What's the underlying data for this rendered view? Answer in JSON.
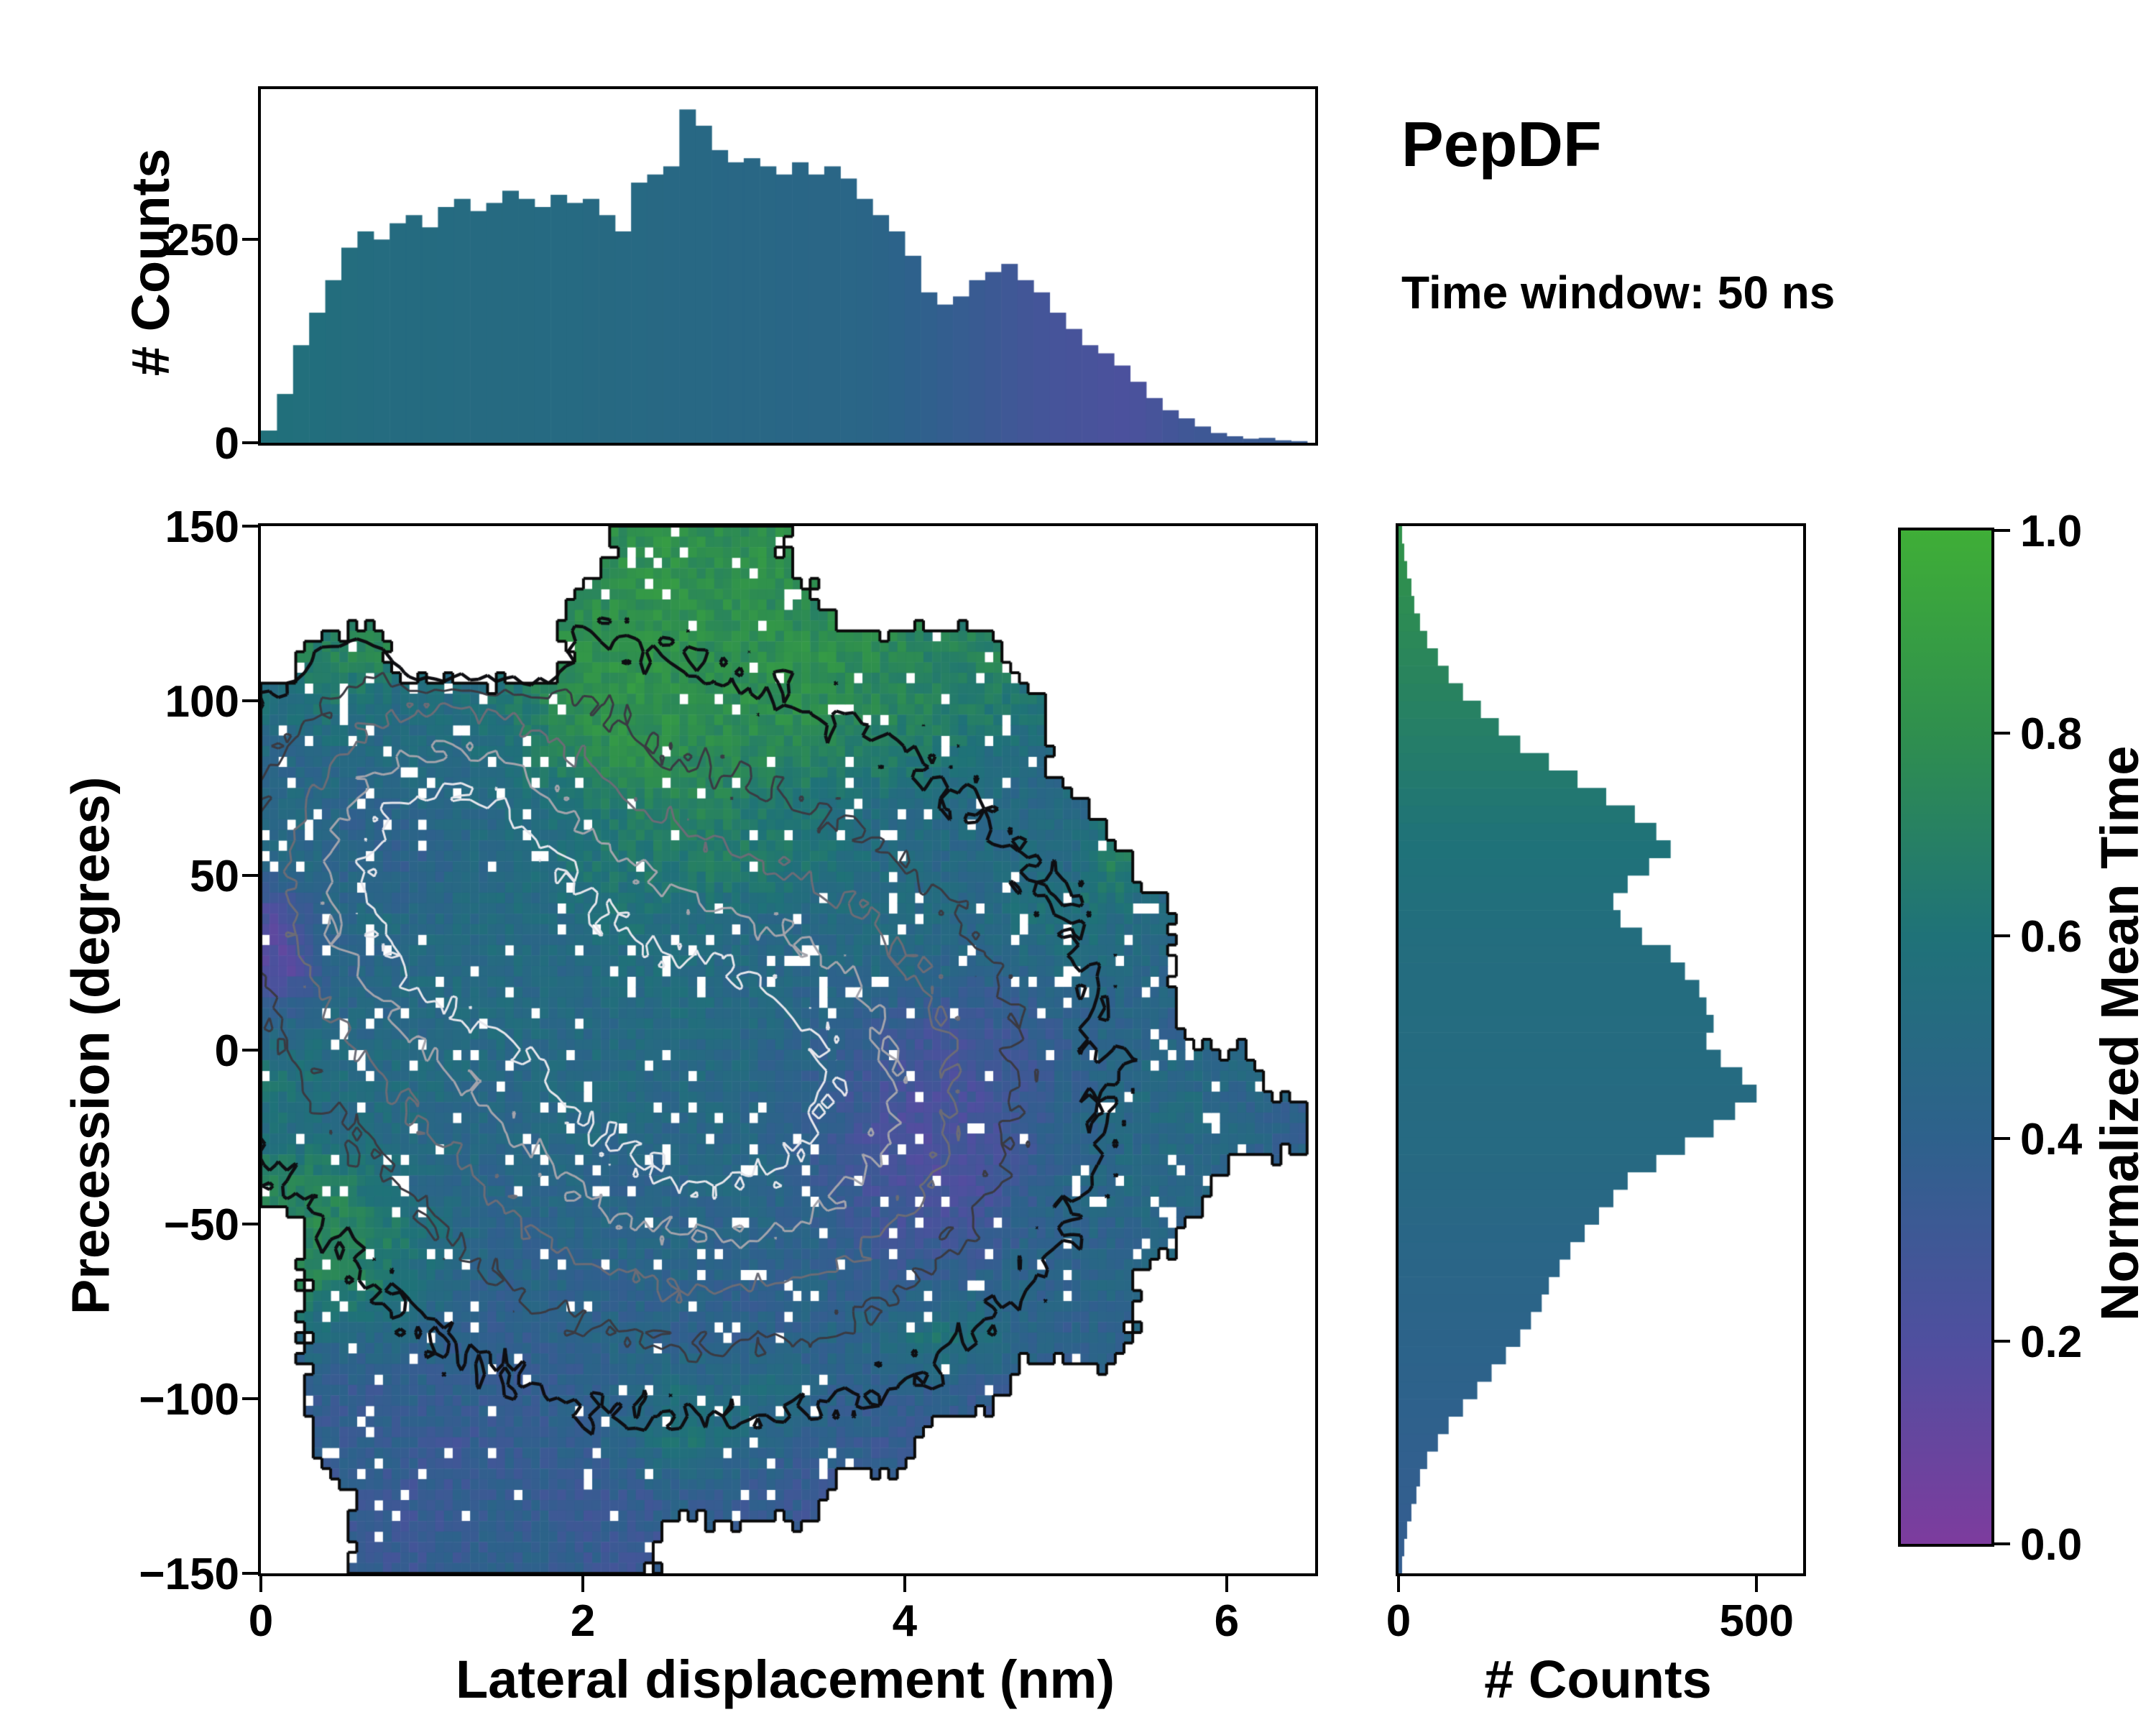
{
  "title": "PepDF",
  "subtitle": "Time window: 50 ns",
  "axes": {
    "main": {
      "xlabel": "Lateral displacement (nm)",
      "ylabel": "Precession (degrees)",
      "xrange": [
        0,
        6.55
      ],
      "yrange": [
        -150,
        150
      ],
      "xticks": [
        {
          "v": 0,
          "l": "0"
        },
        {
          "v": 2,
          "l": "2"
        },
        {
          "v": 4,
          "l": "4"
        },
        {
          "v": 6,
          "l": "6"
        }
      ],
      "yticks": [
        {
          "v": -150,
          "l": "−150"
        },
        {
          "v": -100,
          "l": "−100"
        },
        {
          "v": -50,
          "l": "−50"
        },
        {
          "v": 0,
          "l": "0"
        },
        {
          "v": 50,
          "l": "50"
        },
        {
          "v": 100,
          "l": "100"
        },
        {
          "v": 150,
          "l": "150"
        }
      ]
    },
    "top": {
      "ylabel": "# Counts",
      "yrange": [
        0,
        435
      ],
      "yticks": [
        {
          "v": 0,
          "l": "0"
        },
        {
          "v": 250,
          "l": "250"
        }
      ]
    },
    "right": {
      "xlabel": "# Counts",
      "xrange": [
        0,
        565
      ],
      "xticks": [
        {
          "v": 0,
          "l": "0"
        },
        {
          "v": 500,
          "l": "500"
        }
      ]
    },
    "colorbar": {
      "label": "Normalized Mean Time",
      "range": [
        0,
        1
      ],
      "ticks": [
        {
          "v": 0,
          "l": "0.0"
        },
        {
          "v": 0.2,
          "l": "0.2"
        },
        {
          "v": 0.4,
          "l": "0.4"
        },
        {
          "v": 0.6,
          "l": "0.6"
        },
        {
          "v": 0.8,
          "l": "0.8"
        },
        {
          "v": 1,
          "l": "1.0"
        }
      ]
    }
  },
  "chart_data": {
    "type": "heatmap",
    "title": "PepDF",
    "annotation": "Time window: 50 ns",
    "colormap": {
      "label": "Normalized Mean Time",
      "range": [
        0,
        1
      ],
      "stops": [
        [
          0,
          "#7d3c9e"
        ],
        [
          0.2,
          "#4f4f9f"
        ],
        [
          0.4,
          "#2e618c"
        ],
        [
          0.6,
          "#1f7278"
        ],
        [
          0.8,
          "#2f8f4e"
        ],
        [
          1,
          "#3fae37"
        ]
      ]
    },
    "heatmap": {
      "xlabel": "Lateral displacement (nm)",
      "ylabel": "Precession (degrees)",
      "x_range": [
        0,
        6.5
      ],
      "y_range": [
        -150,
        150
      ],
      "cols": 24,
      "rows": 20,
      "values": [
        [
          null,
          null,
          null,
          null,
          null,
          null,
          null,
          null,
          0.8,
          0.82,
          0.78,
          0.8,
          null,
          null,
          null,
          null,
          null,
          null,
          null,
          null,
          null,
          null,
          null,
          null
        ],
        [
          null,
          null,
          null,
          null,
          null,
          null,
          null,
          0.78,
          0.8,
          0.82,
          0.8,
          0.78,
          0.75,
          null,
          null,
          null,
          null,
          null,
          null,
          null,
          null,
          null,
          null,
          null
        ],
        [
          null,
          0.7,
          0.75,
          null,
          null,
          null,
          null,
          0.8,
          0.82,
          0.8,
          0.78,
          0.8,
          0.82,
          0.78,
          0.75,
          0.7,
          0.72,
          null,
          null,
          null,
          null,
          null,
          null,
          null
        ],
        [
          0.55,
          0.6,
          0.55,
          0.5,
          0.55,
          0.6,
          0.72,
          0.8,
          0.82,
          0.8,
          0.78,
          0.8,
          0.78,
          0.75,
          0.72,
          0.7,
          0.68,
          0.6,
          null,
          null,
          null,
          null,
          null,
          null
        ],
        [
          0.45,
          0.5,
          0.48,
          0.52,
          0.5,
          0.55,
          0.65,
          0.75,
          0.8,
          0.78,
          0.75,
          0.72,
          0.7,
          0.68,
          0.65,
          0.6,
          0.55,
          0.5,
          null,
          null,
          null,
          null,
          null,
          null
        ],
        [
          0.5,
          0.45,
          0.42,
          0.45,
          0.48,
          0.5,
          0.55,
          0.6,
          0.68,
          0.72,
          0.7,
          0.65,
          0.6,
          0.55,
          0.5,
          0.52,
          0.5,
          0.48,
          0.5,
          null,
          null,
          null,
          null,
          null
        ],
        [
          0.48,
          0.45,
          0.42,
          0.4,
          0.45,
          0.5,
          0.55,
          0.6,
          0.62,
          0.65,
          0.68,
          0.65,
          0.6,
          0.55,
          0.5,
          0.48,
          0.5,
          0.52,
          0.5,
          0.7,
          null,
          null,
          null,
          null
        ],
        [
          0.2,
          0.45,
          0.5,
          0.48,
          0.5,
          0.52,
          0.5,
          0.55,
          0.58,
          0.55,
          0.52,
          0.5,
          0.48,
          0.5,
          0.52,
          0.5,
          0.48,
          0.55,
          0.6,
          0.55,
          0.5,
          null,
          null,
          null
        ],
        [
          0.15,
          0.4,
          0.45,
          0.5,
          0.52,
          0.5,
          0.48,
          0.5,
          0.52,
          0.55,
          0.5,
          0.48,
          0.45,
          0.48,
          0.5,
          0.45,
          0.42,
          0.45,
          0.5,
          0.48,
          0.45,
          null,
          null,
          null
        ],
        [
          0.45,
          0.5,
          0.48,
          0.45,
          0.5,
          0.52,
          0.5,
          0.48,
          0.5,
          0.52,
          0.5,
          0.48,
          0.45,
          0.4,
          0.35,
          0.3,
          0.32,
          0.35,
          0.4,
          0.45,
          0.42,
          null,
          null,
          null
        ],
        [
          0.6,
          0.55,
          0.5,
          0.52,
          0.5,
          0.48,
          0.5,
          0.52,
          0.5,
          0.48,
          0.5,
          0.45,
          0.42,
          0.35,
          0.28,
          0.25,
          0.28,
          0.3,
          0.4,
          0.45,
          0.5,
          0.48,
          0.45,
          null
        ],
        [
          0.55,
          0.5,
          0.52,
          0.5,
          0.48,
          0.45,
          0.48,
          0.5,
          0.48,
          0.45,
          0.48,
          0.45,
          0.4,
          0.3,
          0.25,
          0.22,
          0.25,
          0.3,
          0.42,
          0.45,
          0.48,
          0.5,
          0.45,
          0.4
        ],
        [
          0.7,
          0.72,
          0.6,
          0.5,
          0.48,
          0.45,
          0.48,
          0.45,
          0.42,
          0.45,
          0.48,
          0.45,
          0.4,
          0.3,
          0.25,
          0.22,
          0.25,
          0.35,
          0.45,
          0.48,
          0.5,
          0.45,
          null,
          null
        ],
        [
          null,
          0.75,
          0.72,
          0.6,
          0.5,
          0.45,
          0.42,
          0.45,
          0.48,
          0.45,
          0.42,
          0.45,
          0.42,
          0.35,
          0.3,
          0.28,
          0.3,
          0.4,
          0.45,
          0.42,
          0.45,
          null,
          null,
          null
        ],
        [
          null,
          0.7,
          0.68,
          0.55,
          0.45,
          0.42,
          0.45,
          0.42,
          0.4,
          0.45,
          0.42,
          0.4,
          0.42,
          0.4,
          0.38,
          0.4,
          0.42,
          0.45,
          0.4,
          0.45,
          null,
          null,
          null,
          null
        ],
        [
          null,
          0.5,
          0.48,
          0.45,
          0.4,
          0.38,
          0.4,
          0.42,
          0.45,
          0.4,
          0.38,
          0.4,
          0.42,
          0.45,
          0.5,
          0.6,
          0.55,
          0.45,
          0.4,
          0.42,
          null,
          null,
          null,
          null
        ],
        [
          null,
          0.38,
          0.35,
          0.38,
          0.4,
          0.38,
          0.35,
          0.4,
          0.45,
          0.55,
          0.5,
          0.55,
          0.45,
          0.4,
          0.38,
          0.4,
          0.35,
          null,
          null,
          null,
          null,
          null,
          null,
          null
        ],
        [
          null,
          0.35,
          0.38,
          0.35,
          0.32,
          0.35,
          0.38,
          0.4,
          0.45,
          0.6,
          0.55,
          0.45,
          0.4,
          0.38,
          0.35,
          null,
          null,
          null,
          null,
          null,
          null,
          null,
          null,
          null
        ],
        [
          null,
          null,
          0.35,
          0.32,
          0.35,
          0.38,
          0.35,
          0.32,
          0.35,
          0.4,
          0.38,
          0.35,
          0.32,
          null,
          null,
          null,
          null,
          null,
          null,
          null,
          null,
          null,
          null,
          null
        ],
        [
          null,
          null,
          0.35,
          0.32,
          0.35,
          0.4,
          0.38,
          0.35,
          0.32,
          null,
          null,
          null,
          null,
          null,
          null,
          null,
          null,
          null,
          null,
          null,
          null,
          null,
          null,
          null
        ]
      ]
    },
    "contours": {
      "note": "density contours of 2D histogram",
      "gaussians": [
        {
          "cx": 1.05,
          "cy": 55,
          "sx": 0.75,
          "sy": 38,
          "w": 1.0
        },
        {
          "cx": 2.95,
          "cy": -15,
          "sx": 1.25,
          "sy": 50,
          "w": 1.05
        },
        {
          "cx": 2.1,
          "cy": 20,
          "sx": 1.9,
          "sy": 75,
          "w": 0.5
        }
      ],
      "levels": [
        0.2,
        0.36,
        0.52,
        0.68,
        0.82
      ],
      "colors": [
        "#0e0e12",
        "#3a3a42",
        "#6c6c76",
        "#a4a4ac",
        "#e6e6ec"
      ],
      "widths": [
        4.5,
        3,
        3,
        3,
        3
      ],
      "noise": 0.05
    },
    "top_histogram": {
      "ylabel": "# Counts",
      "bin_start": 0,
      "bin_width": 0.1,
      "y_max": 435,
      "values": [
        15,
        60,
        120,
        160,
        200,
        240,
        260,
        250,
        270,
        280,
        265,
        290,
        300,
        285,
        295,
        310,
        300,
        290,
        305,
        295,
        300,
        280,
        260,
        320,
        330,
        340,
        410,
        390,
        360,
        345,
        350,
        340,
        330,
        345,
        330,
        340,
        325,
        300,
        280,
        260,
        230,
        185,
        170,
        180,
        200,
        210,
        220,
        200,
        185,
        160,
        140,
        120,
        110,
        95,
        75,
        55,
        40,
        30,
        20,
        12,
        8,
        5,
        6,
        3,
        2
      ],
      "color_points": [
        [
          0,
          0.58
        ],
        [
          0.8,
          0.52
        ],
        [
          2,
          0.5
        ],
        [
          3,
          0.47
        ],
        [
          3.8,
          0.45
        ],
        [
          4.3,
          0.36
        ],
        [
          4.8,
          0.27
        ],
        [
          5.4,
          0.22
        ],
        [
          5.8,
          0.3
        ],
        [
          6.4,
          0.34
        ]
      ]
    },
    "right_histogram": {
      "xlabel": "# Counts",
      "bin_start": -150,
      "bin_width": 5,
      "x_max": 565,
      "values": [
        5,
        8,
        12,
        18,
        25,
        30,
        40,
        55,
        70,
        90,
        110,
        130,
        150,
        170,
        185,
        200,
        210,
        225,
        240,
        260,
        280,
        300,
        320,
        360,
        400,
        440,
        470,
        500,
        480,
        450,
        430,
        440,
        430,
        420,
        400,
        380,
        340,
        310,
        300,
        320,
        350,
        380,
        360,
        330,
        290,
        250,
        210,
        170,
        140,
        115,
        90,
        70,
        55,
        40,
        30,
        22,
        18,
        12,
        8,
        5
      ],
      "color_points": [
        [
          -150,
          0.36
        ],
        [
          -120,
          0.38
        ],
        [
          -90,
          0.42
        ],
        [
          -60,
          0.45
        ],
        [
          -30,
          0.5
        ],
        [
          0,
          0.52
        ],
        [
          30,
          0.54
        ],
        [
          60,
          0.6
        ],
        [
          90,
          0.68
        ],
        [
          120,
          0.76
        ],
        [
          145,
          0.82
        ]
      ]
    }
  },
  "render": {
    "seed": 11,
    "fine_factor": 5,
    "speck_rate": 0.05,
    "value_noise": 0.14,
    "mask_noise": 0.3
  }
}
